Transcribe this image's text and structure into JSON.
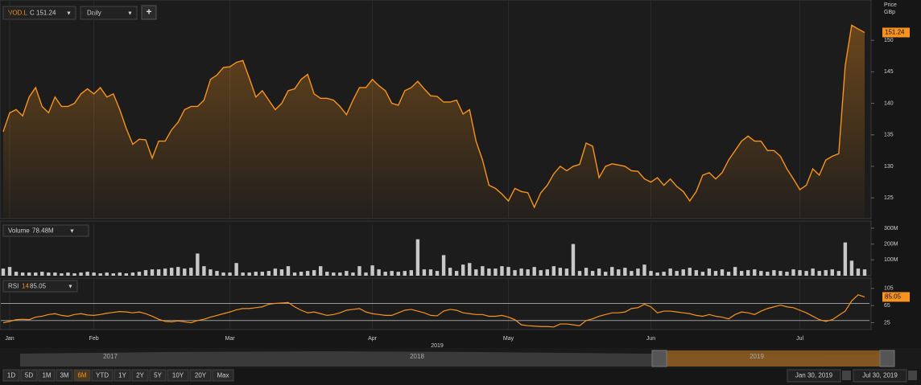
{
  "toolbar": {
    "symbol": "VOD.L",
    "close_label": "C",
    "close": "151.24",
    "interval": "Daily",
    "add": "+"
  },
  "chart_data": [
    {
      "type": "area",
      "ylabel": "Price",
      "unit": "GBp",
      "color": "#f7931e",
      "xlim": [
        0,
        133
      ],
      "ylim": [
        121.7,
        156.4
      ],
      "yticks": [
        125,
        130,
        135,
        140,
        145,
        150
      ],
      "xticks": [
        {
          "value": 1,
          "label": "Jan"
        },
        {
          "value": 14,
          "label": "Feb"
        },
        {
          "value": 35,
          "label": "Mar"
        },
        {
          "value": 57,
          "label": "Apr"
        },
        {
          "value": 78,
          "label": "May"
        },
        {
          "value": 100,
          "label": "Jun"
        },
        {
          "value": 123,
          "label": "Jul"
        }
      ],
      "xyear": "2019",
      "values": [
        135.5,
        138.5,
        139,
        138,
        141,
        142.5,
        139.5,
        138.5,
        141,
        139.5,
        139.5,
        140,
        141.5,
        142.3,
        141.5,
        142.5,
        141,
        141.5,
        139,
        136,
        133.5,
        134.3,
        134.2,
        131.3,
        134,
        134,
        135.8,
        137,
        139,
        139.5,
        139.5,
        140.5,
        143.8,
        144.5,
        145.7,
        145.8,
        146.5,
        146.8,
        144,
        141,
        142,
        140.5,
        139,
        140,
        142,
        142.3,
        143.8,
        144.6,
        141.5,
        140.8,
        140.8,
        140.5,
        139.5,
        138.2,
        140.5,
        142.5,
        142.5,
        143.8,
        142.8,
        142,
        140,
        139.7,
        142,
        142.5,
        143.5,
        142.3,
        141.2,
        141.1,
        140.2,
        140.2,
        140.5,
        138.3,
        139,
        134,
        131,
        127,
        126.5,
        125.6,
        124.5,
        126.5,
        126,
        125.8,
        123.5,
        125.8,
        127,
        128.8,
        130,
        129.3,
        130,
        130.3,
        133.7,
        133.2,
        128.2,
        130,
        130.4,
        130.2,
        130,
        129.3,
        129.2,
        128,
        127.5,
        128.2,
        127,
        128,
        126.8,
        126,
        124.5,
        126,
        128.6,
        129,
        128,
        129,
        131,
        132.5,
        134,
        134.8,
        134,
        134,
        132.5,
        132.5,
        131.6,
        129.6,
        128,
        126.3,
        127,
        129.6,
        128.6,
        131,
        131.6,
        132,
        146,
        152.4,
        151.8,
        151.24
      ]
    },
    {
      "type": "bar",
      "title": "Volume",
      "readout": "78.48M",
      "color": "#c8c8c8",
      "xlim": [
        0,
        133
      ],
      "ylim": [
        0,
        330
      ],
      "yticks": [
        {
          "value": 100,
          "label": "100M"
        },
        {
          "value": 200,
          "label": "200M"
        },
        {
          "value": 300,
          "label": "300M"
        }
      ],
      "values": [
        45,
        55,
        25,
        20,
        20,
        20,
        25,
        20,
        20,
        15,
        20,
        15,
        20,
        25,
        20,
        15,
        20,
        15,
        20,
        15,
        20,
        25,
        35,
        40,
        40,
        45,
        50,
        55,
        45,
        50,
        140,
        60,
        40,
        30,
        20,
        20,
        80,
        20,
        20,
        25,
        25,
        30,
        45,
        40,
        60,
        20,
        25,
        30,
        35,
        60,
        25,
        20,
        20,
        30,
        20,
        60,
        20,
        65,
        40,
        25,
        30,
        25,
        30,
        35,
        230,
        40,
        40,
        30,
        130,
        50,
        30,
        70,
        80,
        40,
        60,
        45,
        45,
        60,
        55,
        35,
        45,
        40,
        55,
        35,
        40,
        60,
        50,
        45,
        200,
        30,
        50,
        30,
        45,
        25,
        55,
        40,
        50,
        30,
        45,
        70,
        30,
        20,
        25,
        45,
        30,
        40,
        50,
        35,
        25,
        45,
        30,
        40,
        25,
        55,
        30,
        35,
        40,
        30,
        25,
        35,
        30,
        25,
        40,
        35,
        30,
        45,
        30,
        35,
        40,
        30,
        210,
        95,
        45,
        40
      ]
    },
    {
      "type": "line",
      "title": "RSI",
      "period": "14",
      "color": "#f7931e",
      "xlim": [
        0,
        133
      ],
      "ylim": [
        9,
        129
      ],
      "yticks": [
        25,
        65,
        105
      ],
      "bands": [
        30,
        70
      ],
      "values": [
        25,
        28,
        32,
        33,
        32,
        38,
        40,
        44,
        46,
        42,
        40,
        44,
        46,
        43,
        42,
        44,
        47,
        49,
        51,
        50,
        48,
        50,
        46,
        40,
        33,
        28,
        27,
        29,
        27,
        25,
        30,
        33,
        38,
        42,
        46,
        50,
        55,
        58,
        58,
        60,
        62,
        68,
        70,
        71,
        72,
        62,
        54,
        48,
        50,
        46,
        42,
        44,
        48,
        54,
        56,
        58,
        50,
        46,
        44,
        42,
        42,
        48,
        54,
        56,
        52,
        48,
        42,
        41,
        52,
        56,
        54,
        48,
        46,
        44,
        44,
        40,
        40,
        42,
        38,
        32,
        20,
        18,
        17,
        16,
        16,
        15,
        22,
        22,
        20,
        18,
        30,
        34,
        40,
        44,
        48,
        48,
        50,
        58,
        60,
        68,
        62,
        48,
        52,
        52,
        50,
        48,
        46,
        42,
        40,
        44,
        40,
        38,
        34,
        44,
        50,
        48,
        44,
        52,
        58,
        62,
        66,
        62,
        60,
        54,
        48,
        40,
        32,
        28,
        32,
        42,
        52,
        76,
        90,
        85.05
      ]
    }
  ],
  "navigator": {
    "years": [
      "2017",
      "2018",
      "2019"
    ]
  },
  "ranges": [
    "1D",
    "5D",
    "1M",
    "3M",
    "6M",
    "YTD",
    "1Y",
    "2Y",
    "5Y",
    "10Y",
    "20Y",
    "Max"
  ],
  "active_range": 4,
  "date_from": "Jan 30, 2019",
  "date_to": "Jul 30, 2019"
}
